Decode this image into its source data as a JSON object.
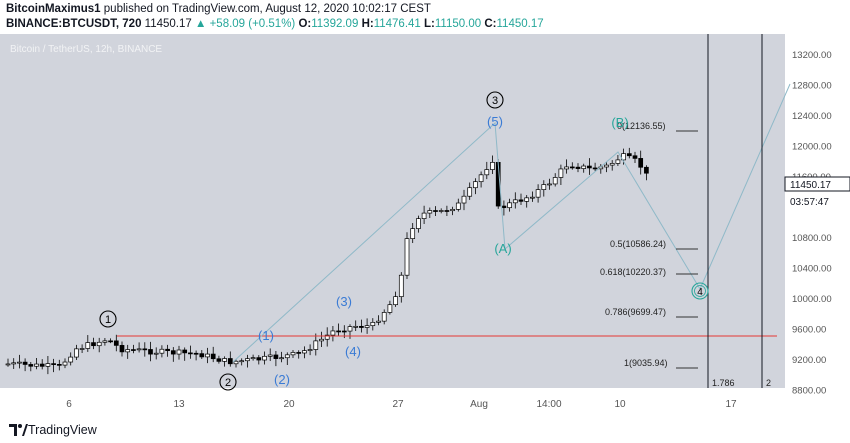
{
  "header": {
    "author": "BitcoinMaximus1",
    "published_text": "published on TradingView.com, August 12, 2020 10:02:17 CEST",
    "symbol": "BINANCE:BTCUSDT, 720",
    "last": "11450.17",
    "change": "▲ +58.09 (+0.51%)",
    "o_label": "O:",
    "o_value": "11392.09",
    "h_label": "H:",
    "h_value": "11476.41",
    "l_label": "L:",
    "l_value": "11150.00",
    "c_label": "C:",
    "c_value": "11450.17"
  },
  "chart": {
    "legend": "Bitcoin / TetherUS, 12h, BINANCE",
    "price_axis": [
      "13200.00",
      "12800.00",
      "12400.00",
      "12000.00",
      "11600.00",
      "10800.00",
      "10400.00",
      "10000.00",
      "9600.00",
      "9200.00",
      "8800.00"
    ],
    "price_ticks": [
      13200,
      12800,
      12400,
      12000,
      11600,
      10800,
      10400,
      10000,
      9600,
      9200,
      8800
    ],
    "current_price": "11450.17",
    "countdown": "03:57:47",
    "time_axis": [
      "6",
      "13",
      "20",
      "27",
      "Aug",
      "14:00",
      "10",
      "17"
    ],
    "fib_levels": [
      {
        "label": "0(12136.55)",
        "price": 12136.55
      },
      {
        "label": "0.5(10586.24)",
        "price": 10586.24
      },
      {
        "label": "0.618(10220.37)",
        "price": 10220.37
      },
      {
        "label": "0.786(9699.47)",
        "price": 9699.47
      },
      {
        "label": "1(9035.94)",
        "price": 9035.94
      }
    ],
    "support_price": 9450,
    "fib_ext": [
      "1.786",
      "2"
    ],
    "waves_major": [
      "1",
      "2",
      "3",
      "4"
    ],
    "waves_minor": [
      "(1)",
      "(2)",
      "(3)",
      "(4)",
      "(5)"
    ],
    "abc": [
      "(A)",
      "(B)"
    ],
    "colors": {
      "background": "#d1d4dc",
      "support": "#e53935",
      "minor": "#3a7bd5",
      "abc": "#26a69a",
      "wave_line": "#8fb9c8",
      "candle_up": "#ffffff",
      "candle_down": "#000000"
    }
  },
  "footer": {
    "brand": "TradingView"
  }
}
